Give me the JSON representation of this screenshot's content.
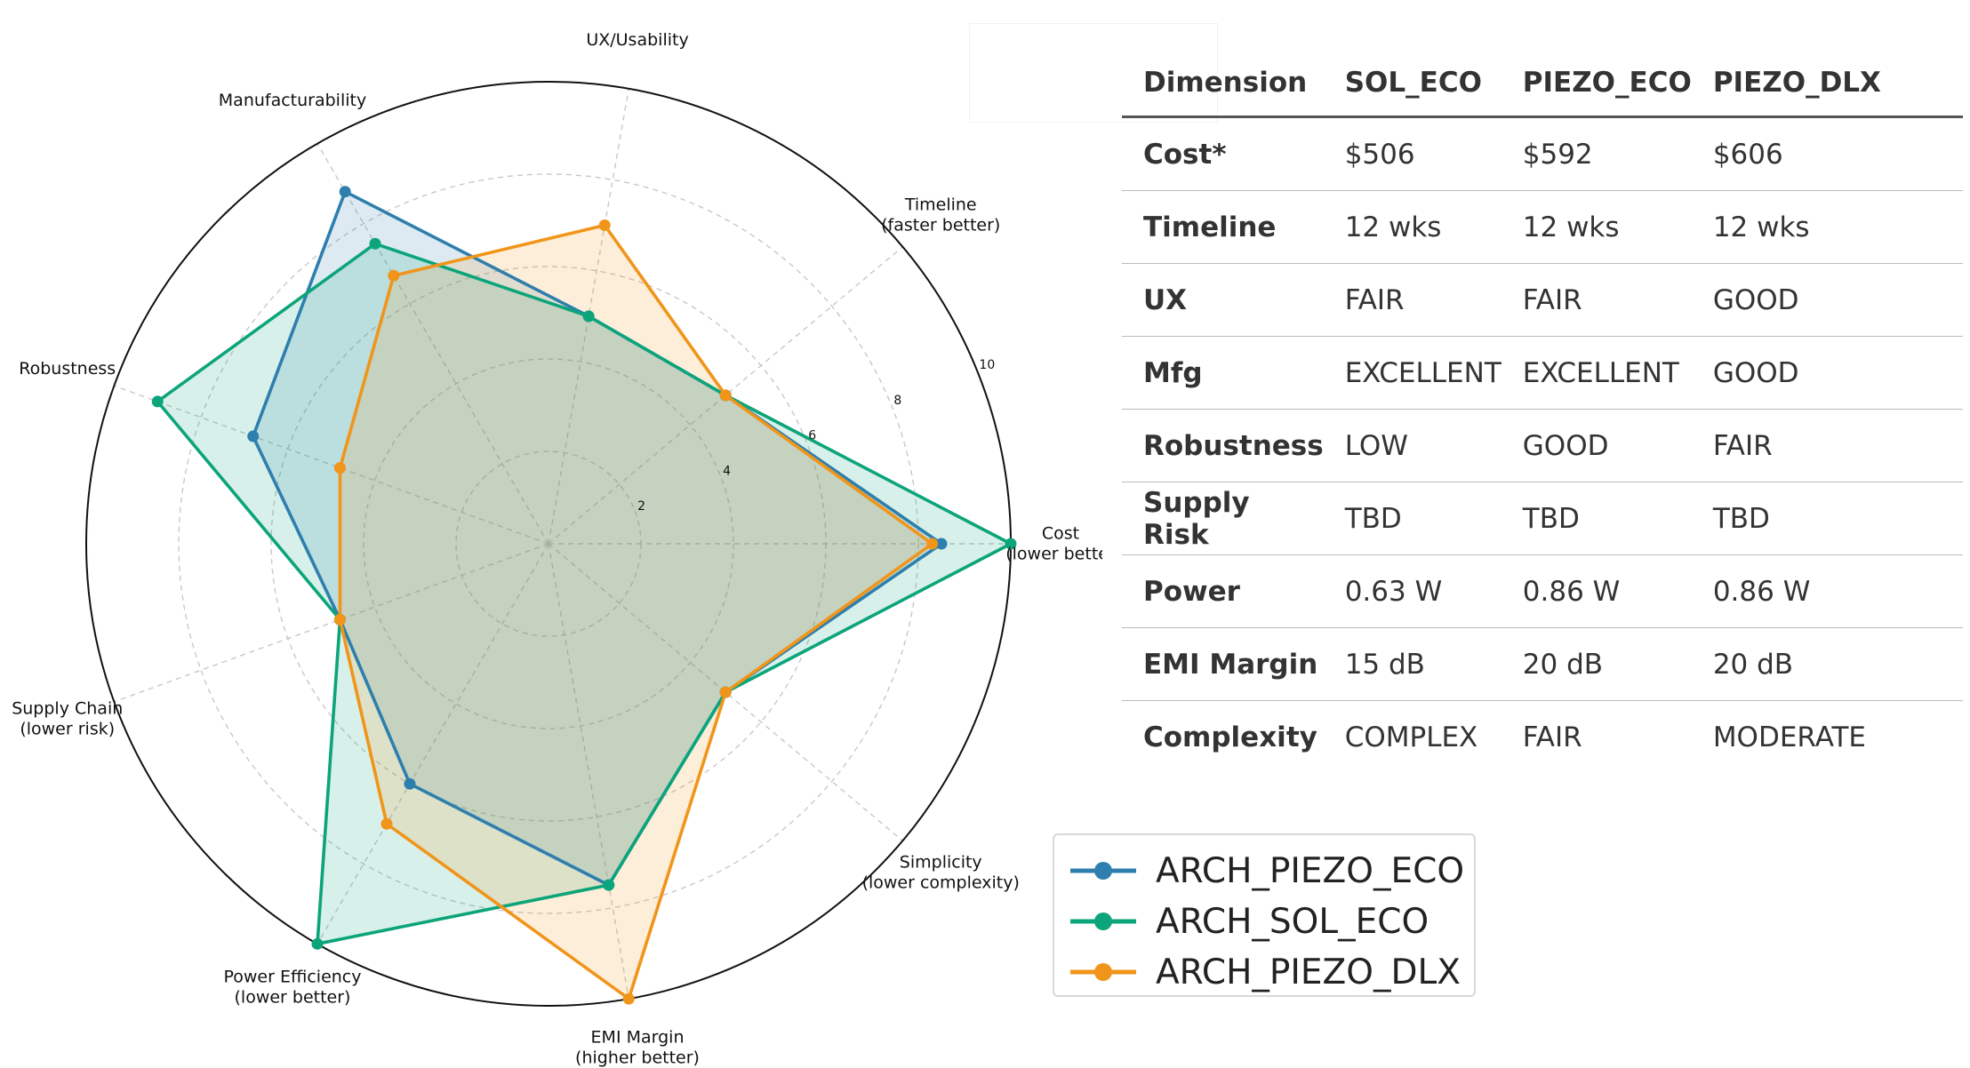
{
  "chart_data": {
    "type": "radar",
    "axes": [
      "Cost\n(lower better",
      "Timeline\n(faster better)",
      "UX/Usability",
      "Manufacturability",
      "Robustness",
      "Supply Chain\n(lower risk)",
      "Power Efficiency\n(lower better)",
      "EMI Margin\n(higher better)",
      "Simplicity\n(lower complexity)"
    ],
    "rlim": [
      0,
      10
    ],
    "radial_ticks": [
      "2",
      "4",
      "6",
      "8",
      "10"
    ],
    "radial_tick_values": [
      2,
      4,
      6,
      8,
      10
    ],
    "grid": true,
    "series": [
      {
        "name": "ARCH_PIEZO_ECO",
        "color": "#2e7fae",
        "values": [
          8.5,
          5.0,
          5.0,
          8.8,
          6.8,
          4.8,
          6.0,
          7.5,
          5.0
        ]
      },
      {
        "name": "ARCH_SOL_ECO",
        "color": "#0ca47a",
        "values": [
          10.0,
          5.0,
          5.0,
          7.5,
          9.0,
          4.8,
          10.0,
          7.5,
          5.0
        ]
      },
      {
        "name": "ARCH_PIEZO_DLX",
        "color": "#f0951a",
        "values": [
          8.3,
          5.0,
          7.0,
          6.7,
          4.8,
          4.8,
          7.0,
          10.0,
          5.0
        ]
      }
    ],
    "legend_position": "lower-right"
  },
  "table": {
    "headers": [
      "Dimension",
      "SOL_ECO",
      "PIEZO_ECO",
      "PIEZO_DLX"
    ],
    "rows": [
      [
        "Cost*",
        "$506",
        "$592",
        "$606"
      ],
      [
        "Timeline",
        "12 wks",
        "12 wks",
        "12 wks"
      ],
      [
        "UX",
        "FAIR",
        "FAIR",
        "GOOD"
      ],
      [
        "Mfg",
        "EXCELLENT",
        "EXCELLENT",
        "GOOD"
      ],
      [
        "Robustness",
        "LOW",
        "GOOD",
        "FAIR"
      ],
      [
        "Supply Risk",
        "TBD",
        "TBD",
        "TBD"
      ],
      [
        "Power",
        "0.63 W",
        "0.86 W",
        "0.86 W"
      ],
      [
        "EMI Margin",
        "15 dB",
        "20 dB",
        "20 dB"
      ],
      [
        "Complexity",
        "COMPLEX",
        "FAIR",
        "MODERATE"
      ]
    ]
  },
  "legend": {
    "items": [
      {
        "label": "ARCH_PIEZO_ECO",
        "color": "#2e7fae"
      },
      {
        "label": "ARCH_SOL_ECO",
        "color": "#0ca47a"
      },
      {
        "label": "ARCH_PIEZO_DLX",
        "color": "#f0951a"
      }
    ]
  }
}
